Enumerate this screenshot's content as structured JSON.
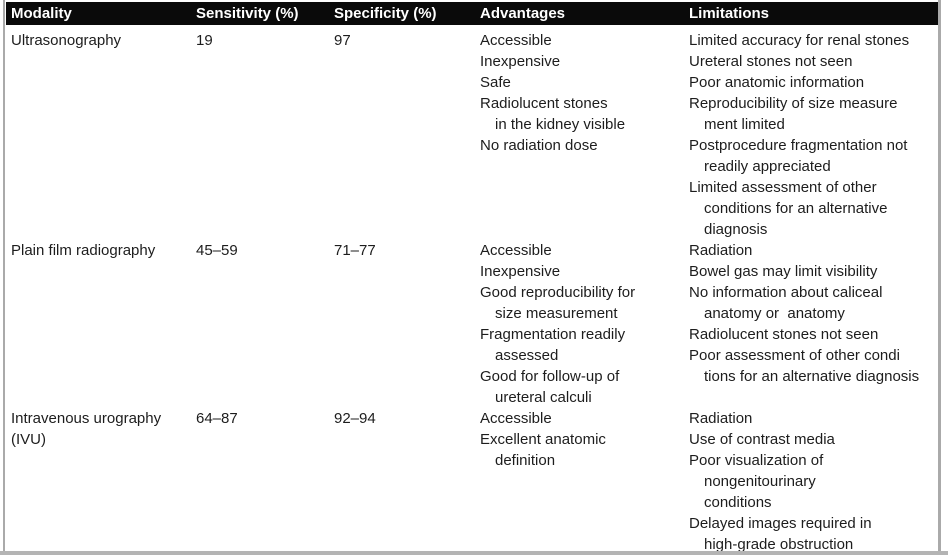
{
  "colors": {
    "header_bg": "#0a0a0a",
    "header_text": "#ffffff",
    "body_text": "#1d1d1d",
    "page_edge_gray": "#aaaaaa"
  },
  "table": {
    "columns": [
      {
        "label": "Modality"
      },
      {
        "label": "Sensitivity (%)"
      },
      {
        "label": "Specificity (%)"
      },
      {
        "label": "Advantages"
      },
      {
        "label": "Limitations"
      }
    ],
    "rows": [
      {
        "modality": [
          "Ultrasonography"
        ],
        "sensitivity": "19",
        "specificity": "97",
        "advantages": [
          [
            "Accessible"
          ],
          [
            "Inexpensive"
          ],
          [
            "Safe"
          ],
          [
            "Radiolucent stones",
            "in the kidney visible"
          ],
          [
            "No radiation dose"
          ]
        ],
        "limitations": [
          [
            "Limited accuracy for renal stones"
          ],
          [
            "Ureteral stones not seen"
          ],
          [
            "Poor anatomic information"
          ],
          [
            "Reproducibility of size measure",
            "ment limited"
          ],
          [
            "Postprocedure fragmentation not",
            "readily appreciated"
          ],
          [
            "Limited assessment of other",
            "conditions for an alternative",
            "diagnosis"
          ]
        ]
      },
      {
        "modality": [
          "Plain film radiography"
        ],
        "sensitivity": "45–59",
        "specificity": "71–77",
        "advantages": [
          [
            "Accessible"
          ],
          [
            "Inexpensive"
          ],
          [
            "Good reproducibility for",
            "size measurement"
          ],
          [
            "Fragmentation readily",
            "assessed"
          ],
          [
            "Good for follow-up of",
            "ureteral calculi"
          ]
        ],
        "limitations": [
          [
            "Radiation"
          ],
          [
            "Bowel gas may limit visibility"
          ],
          [
            "No information about caliceal",
            "anatomy or  anatomy"
          ],
          [
            "Radiolucent stones not seen"
          ],
          [
            "Poor assessment of other condi",
            "tions for an alternative diagnosis"
          ]
        ]
      },
      {
        "modality": [
          "Intravenous urography",
          "(IVU)"
        ],
        "sensitivity": "64–87",
        "specificity": "92–94",
        "advantages": [
          [
            "Accessible"
          ],
          [
            "Excellent anatomic",
            "definition"
          ]
        ],
        "limitations": [
          [
            "Radiation"
          ],
          [
            "Use of contrast media"
          ],
          [
            "Poor visualization of",
            "nongenitourinary",
            "conditions"
          ],
          [
            "Delayed images required in",
            "high-grade obstruction"
          ]
        ]
      }
    ]
  }
}
